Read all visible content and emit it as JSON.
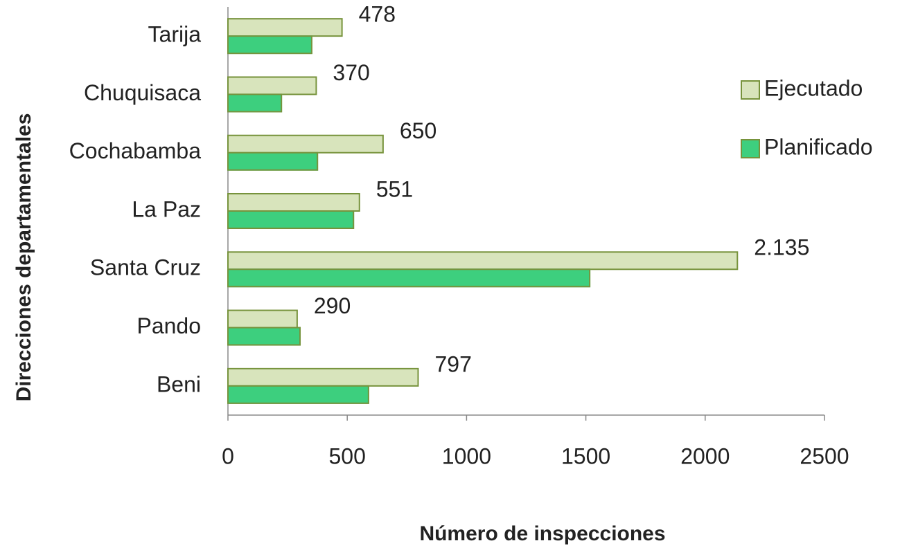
{
  "chart_data": {
    "type": "hbar",
    "xlabel": "Número de inspecciones",
    "ylabel": "Direcciones departamentales",
    "categories": [
      "Tarija",
      "Chuquisaca",
      "Cochabamba",
      "La Paz",
      "Santa Cruz",
      "Pando",
      "Beni"
    ],
    "series": [
      {
        "name": "Ejecutado",
        "color": "#d8e4bc",
        "values": [
          478,
          370,
          650,
          551,
          2135,
          290,
          797
        ],
        "value_labels": [
          "478",
          "370",
          "650",
          "551",
          "2.135",
          "290",
          "797"
        ]
      },
      {
        "name": "Planificado",
        "color": "#3ecf7e",
        "values": [
          351,
          224,
          375,
          526,
          1516,
          302,
          589
        ]
      }
    ],
    "xlim": [
      0,
      2500
    ],
    "xticks": [
      0,
      500,
      1000,
      1500,
      2000,
      2500
    ],
    "legend": "right"
  }
}
